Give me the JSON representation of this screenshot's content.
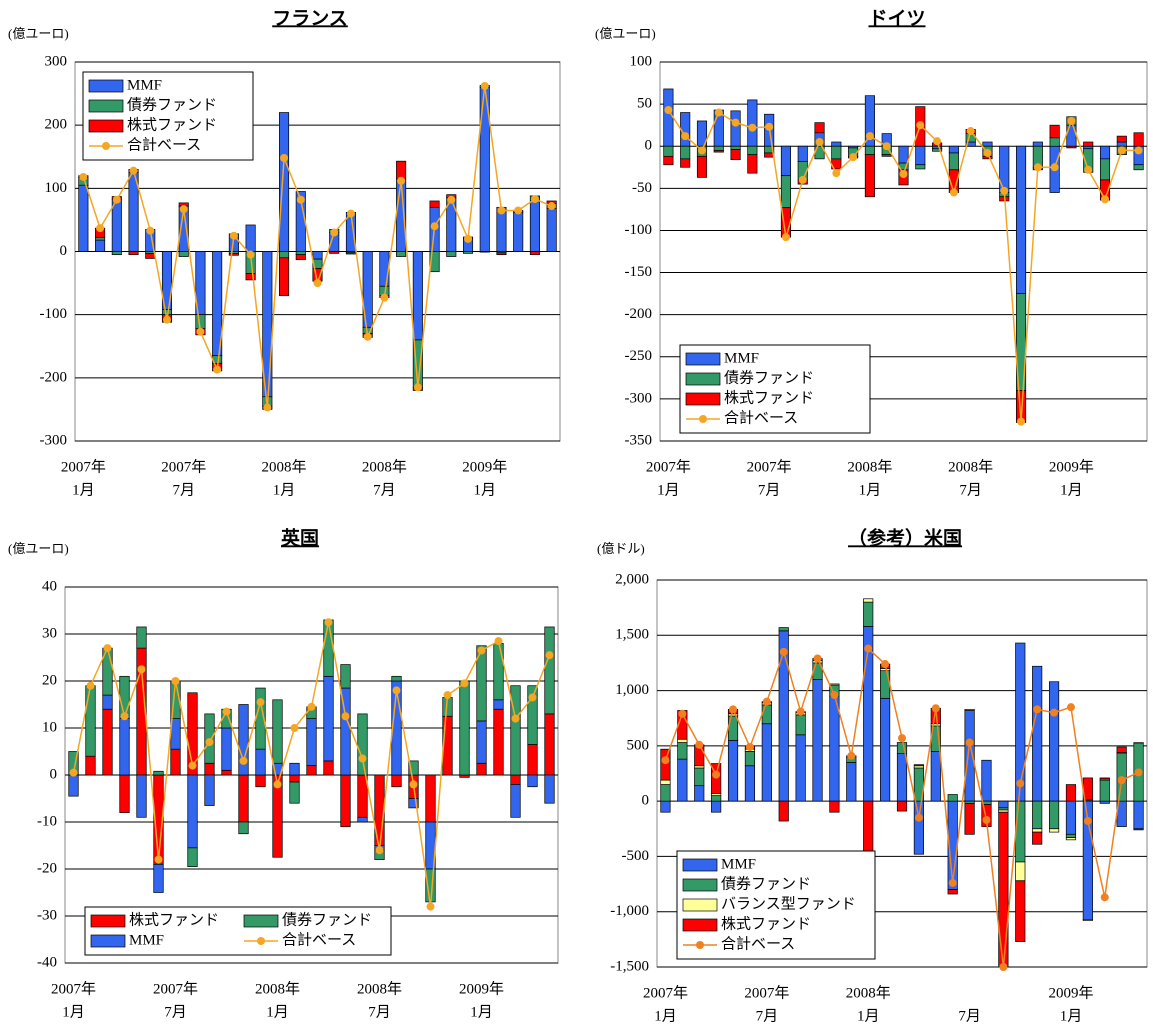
{
  "chart_data": [
    {
      "type": "bar",
      "stacked": true,
      "title": "フランス",
      "unit": "(億ユーロ)",
      "categories": [
        [
          "2007年",
          "1月"
        ],
        null,
        null,
        null,
        null,
        null,
        [
          "2007年",
          "7月"
        ],
        null,
        null,
        null,
        null,
        null,
        [
          "2008年",
          "1月"
        ],
        null,
        null,
        null,
        null,
        null,
        [
          "2008年",
          "7月"
        ],
        null,
        null,
        null,
        null,
        null,
        [
          "2009年",
          "1月"
        ],
        null,
        null,
        null,
        null
      ],
      "ylim": [
        -300,
        300
      ],
      "yticks": [
        300,
        200,
        100,
        0,
        -100,
        -200,
        -300
      ],
      "grid": true,
      "legend": {
        "position": "upper left",
        "columns": 1
      },
      "series": [
        {
          "name": "MMF",
          "color": "#3366ee",
          "values": [
            105,
            18,
            82,
            125,
            35,
            -92,
            72,
            -100,
            -165,
            28,
            42,
            -230,
            220,
            95,
            -12,
            30,
            62,
            -120,
            -55,
            115,
            -140,
            70,
            85,
            20,
            260,
            70,
            62,
            80,
            68
          ]
        },
        {
          "name": "債券ファンド",
          "color": "#339966",
          "values": [
            12,
            4,
            -5,
            5,
            -3,
            -8,
            -8,
            -22,
            -12,
            -3,
            -35,
            -15,
            -10,
            -5,
            -15,
            5,
            -2,
            -10,
            -15,
            -8,
            -75,
            -32,
            -8,
            -3,
            3,
            -2,
            2,
            8,
            8
          ]
        },
        {
          "name": "株式ファンド",
          "color": "#ff0000",
          "values": [
            3,
            15,
            5,
            -5,
            -8,
            -12,
            5,
            -10,
            -12,
            -3,
            -10,
            -5,
            -60,
            -8,
            -20,
            -3,
            -2,
            -6,
            -3,
            28,
            -5,
            10,
            5,
            3,
            -1,
            -3,
            1,
            -5,
            4
          ]
        },
        {
          "name": "合計ベース",
          "type": "line",
          "color": "#f5a623",
          "values": [
            118,
            37,
            82,
            128,
            33,
            -108,
            67,
            -127,
            -187,
            25,
            -5,
            -247,
            148,
            82,
            -50,
            30,
            60,
            -135,
            -73,
            112,
            -215,
            40,
            82,
            20,
            262,
            65,
            65,
            83,
            72
          ]
        }
      ]
    },
    {
      "type": "bar",
      "stacked": true,
      "title": "ドイツ",
      "unit": "(億ユーロ)",
      "categories": [
        [
          "2007年",
          "1月"
        ],
        null,
        null,
        null,
        null,
        null,
        [
          "2007年",
          "7月"
        ],
        null,
        null,
        null,
        null,
        null,
        [
          "2008年",
          "1月"
        ],
        null,
        null,
        null,
        null,
        null,
        [
          "2008年",
          "7月"
        ],
        null,
        null,
        null,
        null,
        null,
        [
          "2009年",
          "1月"
        ],
        null,
        null,
        null,
        null
      ],
      "ylim": [
        -350,
        100
      ],
      "yticks": [
        100,
        50,
        0,
        -50,
        -100,
        -150,
        -200,
        -250,
        -300,
        -350
      ],
      "grid": true,
      "legend": {
        "position": "lower left",
        "columns": 1
      },
      "series": [
        {
          "name": "MMF",
          "color": "#3366ee",
          "values": [
            68,
            40,
            30,
            43,
            42,
            55,
            38,
            -35,
            -18,
            16,
            5,
            -2,
            60,
            15,
            -20,
            -22,
            -3,
            -8,
            5,
            5,
            -55,
            -175,
            5,
            -55,
            25,
            -3,
            -15,
            5,
            -22
          ]
        },
        {
          "name": "債券ファンド",
          "color": "#339966",
          "values": [
            -12,
            -15,
            -12,
            -5,
            -4,
            -10,
            -8,
            -38,
            -22,
            -15,
            -15,
            -10,
            -10,
            -10,
            -8,
            -5,
            -3,
            -20,
            10,
            -12,
            -5,
            -115,
            -25,
            10,
            10,
            -28,
            -25,
            -10,
            -6
          ]
        },
        {
          "name": "株式ファンド",
          "color": "#ff0000",
          "values": [
            -10,
            -10,
            -25,
            -2,
            -12,
            -22,
            -5,
            -35,
            -5,
            12,
            -12,
            -2,
            -50,
            -2,
            -18,
            47,
            4,
            -27,
            5,
            -3,
            -5,
            -38,
            -3,
            15,
            -2,
            5,
            -24,
            7,
            16
          ]
        },
        {
          "name": "合計ベース",
          "type": "line",
          "color": "#f5a623",
          "values": [
            43,
            12,
            -5,
            40,
            28,
            22,
            23,
            -108,
            -40,
            5,
            -32,
            -13,
            12,
            0,
            -33,
            25,
            6,
            -55,
            18,
            -8,
            -53,
            -327,
            -25,
            -25,
            30,
            -28,
            -63,
            -5,
            -5
          ]
        }
      ]
    },
    {
      "type": "bar",
      "stacked": true,
      "title": "英国",
      "unit": "(億ユーロ)",
      "categories": [
        [
          "2007年",
          "1月"
        ],
        null,
        null,
        null,
        null,
        null,
        [
          "2007年",
          "7月"
        ],
        null,
        null,
        null,
        null,
        null,
        [
          "2008年",
          "1月"
        ],
        null,
        null,
        null,
        null,
        null,
        [
          "2008年",
          "7月"
        ],
        null,
        null,
        null,
        null,
        null,
        [
          "2009年",
          "1月"
        ],
        null,
        null,
        null,
        null
      ],
      "ylim": [
        -40,
        40
      ],
      "yticks": [
        40,
        30,
        20,
        10,
        0,
        -10,
        -20,
        -30,
        -40
      ],
      "grid": true,
      "legend": {
        "position": "lower left",
        "columns": 2
      },
      "series": [
        {
          "name": "株式ファンド",
          "color": "#ff0000",
          "values": [
            0,
            4,
            14,
            -8,
            27,
            -19,
            5.5,
            17.5,
            2.5,
            1,
            -10,
            -2.5,
            -17.5,
            -1.5,
            2,
            3,
            -11,
            -9,
            -15,
            -2.5,
            -5,
            -10,
            12.5,
            -0.5,
            2.5,
            14,
            -2,
            6.5,
            13
          ]
        },
        {
          "name": "MMF",
          "color": "#3366ee",
          "values": [
            -4.5,
            0,
            3,
            12,
            -9,
            -6,
            6.5,
            -15.5,
            -6.5,
            9,
            15,
            5.5,
            2.5,
            2.5,
            10,
            18,
            18.5,
            -1,
            -1,
            20,
            -2,
            -10,
            0,
            0,
            9,
            2,
            -7,
            -2.5,
            -6
          ]
        },
        {
          "name": "債券ファンド",
          "color": "#339966",
          "values": [
            5,
            15,
            10,
            9,
            4.5,
            0.8,
            8,
            -4,
            10.5,
            4,
            -2.5,
            13,
            13.5,
            -4.5,
            2.5,
            12,
            5,
            13,
            -2,
            1,
            3,
            -7,
            4,
            20,
            16,
            12,
            19,
            12.5,
            18.5
          ]
        },
        {
          "name": "合計ベース",
          "type": "line",
          "color": "#f5a623",
          "values": [
            0.5,
            19,
            27,
            12.5,
            22.5,
            -18,
            20,
            2,
            7,
            13.5,
            3,
            15.5,
            -2,
            10,
            14.5,
            32.5,
            12.5,
            3.5,
            -16,
            18,
            -2,
            -28,
            17,
            19.5,
            26.5,
            28.5,
            12,
            16.5,
            25.5
          ]
        }
      ]
    },
    {
      "type": "bar",
      "stacked": true,
      "title": "（参考）米国",
      "unit": "(億ドル)",
      "categories": [
        [
          "2007年",
          "1月"
        ],
        null,
        null,
        null,
        null,
        null,
        [
          "2007年",
          "7月"
        ],
        null,
        null,
        null,
        null,
        null,
        [
          "2008年",
          "1月"
        ],
        null,
        null,
        null,
        null,
        null,
        [
          "7月"
        ],
        null,
        null,
        null,
        null,
        null,
        [
          "2009年",
          "1月"
        ],
        null,
        null,
        null,
        null
      ],
      "ylim": [
        -1500,
        2000
      ],
      "yticks": [
        {
          "value": 2000,
          "label": "2,000"
        },
        {
          "value": 1500,
          "label": "1,500"
        },
        {
          "value": 1000,
          "label": "1,000"
        },
        500,
        0,
        -500,
        {
          "value": -1000,
          "label": "-1,000"
        },
        {
          "value": -1500,
          "label": "-1,500"
        }
      ],
      "grid": true,
      "legend": {
        "position": "lower left",
        "columns": 1
      },
      "series": [
        {
          "name": "MMF",
          "color": "#3366ee",
          "values": [
            -100,
            380,
            140,
            -100,
            550,
            320,
            700,
            1540,
            600,
            1100,
            950,
            350,
            1580,
            930,
            430,
            -480,
            450,
            -800,
            820,
            370,
            -60,
            1430,
            1220,
            1080,
            -300,
            -1070,
            -20,
            -230,
            -250
          ]
        },
        {
          "name": "債券ファンド",
          "color": "#339966",
          "values": [
            150,
            150,
            160,
            50,
            220,
            130,
            170,
            30,
            180,
            150,
            100,
            50,
            220,
            250,
            100,
            300,
            230,
            60,
            -20,
            -30,
            -20,
            -550,
            -250,
            -250,
            -30,
            10,
            190,
            430,
            520
          ]
        },
        {
          "name": "バランス型ファンド",
          "color": "#ffff99",
          "values": [
            40,
            30,
            20,
            20,
            20,
            20,
            20,
            0,
            20,
            20,
            10,
            10,
            30,
            20,
            0,
            20,
            20,
            0,
            10,
            0,
            -20,
            -170,
            -30,
            -30,
            -20,
            -10,
            10,
            10,
            10
          ]
        },
        {
          "name": "株式ファンド",
          "color": "#ff0000",
          "values": [
            280,
            260,
            190,
            270,
            40,
            30,
            10,
            -180,
            10,
            20,
            -100,
            0,
            -450,
            40,
            -90,
            10,
            140,
            -40,
            -280,
            -200,
            -1400,
            -550,
            -110,
            0,
            150,
            200,
            10,
            50,
            -10
          ]
        },
        {
          "name": "合計ベース",
          "type": "line",
          "color": "#f08020",
          "values": [
            370,
            790,
            510,
            240,
            830,
            490,
            900,
            1350,
            810,
            1290,
            960,
            410,
            1380,
            1240,
            570,
            -150,
            840,
            -740,
            530,
            -170,
            -1500,
            160,
            830,
            800,
            850,
            -180,
            -870,
            190,
            260
          ]
        }
      ]
    }
  ]
}
